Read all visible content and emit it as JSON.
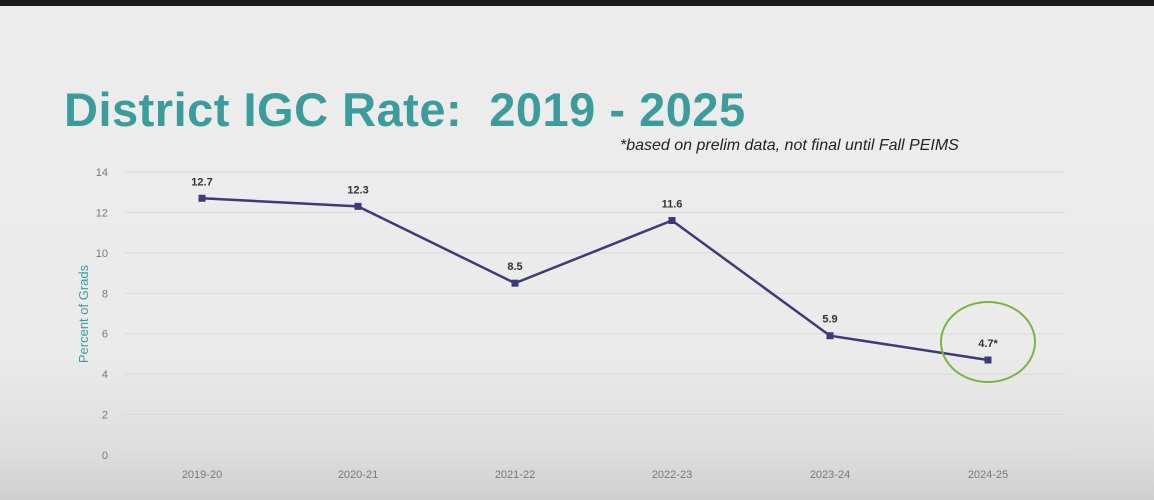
{
  "chart_data": {
    "type": "line",
    "title": "District IGC Rate:  2019 - 2025",
    "subtitle": "*based on prelim data, not final until Fall PEIMS",
    "xlabel": "",
    "ylabel": "Percent of Grads",
    "ylim": [
      0,
      14
    ],
    "yticks": [
      0,
      2,
      4,
      6,
      8,
      10,
      12,
      14
    ],
    "grid": true,
    "categories": [
      "2019-20",
      "2020-21",
      "2021-22",
      "2022-23",
      "2023-24",
      "2024-25"
    ],
    "values": [
      12.7,
      12.3,
      8.5,
      11.6,
      5.9,
      4.7
    ],
    "data_labels": [
      "12.7",
      "12.3",
      "8.5",
      "11.6",
      "5.9",
      "4.7*"
    ],
    "highlight": {
      "category": "2024-25",
      "shape": "circle",
      "color": "#7cb342"
    },
    "line_color": "#3d3a78",
    "title_color": "#3b9c9b"
  }
}
